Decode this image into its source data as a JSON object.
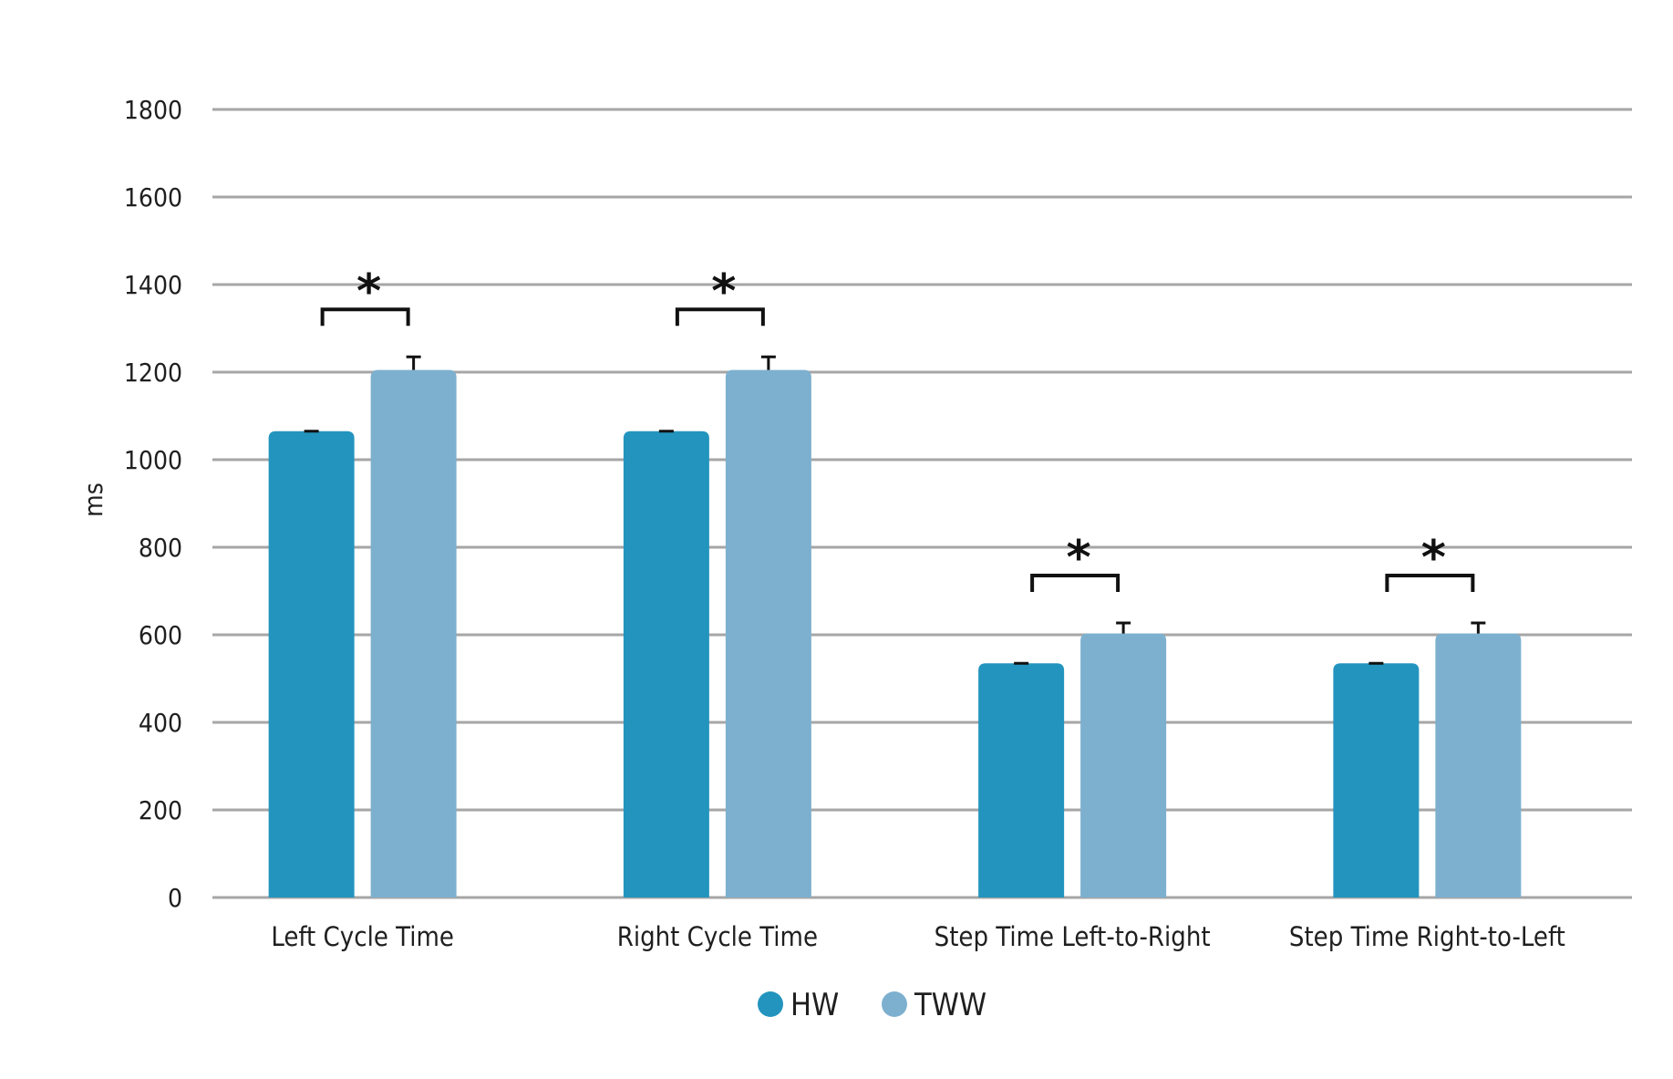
{
  "chart_data": {
    "type": "bar",
    "title": "",
    "xlabel": "",
    "ylabel": "ms",
    "ylim": [
      0,
      1800
    ],
    "yticks": [
      0,
      200,
      400,
      600,
      800,
      1000,
      1200,
      1400,
      1600,
      1800
    ],
    "grid": true,
    "legend_position": "bottom",
    "categories": [
      "Left Cycle Time",
      "Right Cycle Time",
      "Step Time Left-to-Right",
      "Step Time Right-to-Left"
    ],
    "series": [
      {
        "name": "HW",
        "color": "#2394be",
        "values": [
          1065,
          1065,
          535,
          535
        ],
        "errors": [
          0,
          0,
          0,
          0
        ]
      },
      {
        "name": "TWW",
        "color": "#7db0cf",
        "values": [
          1205,
          1205,
          603,
          603
        ],
        "errors": [
          30,
          30,
          24,
          24
        ]
      }
    ],
    "significance": [
      {
        "category": "Left Cycle Time",
        "marker": "*"
      },
      {
        "category": "Right Cycle Time",
        "marker": "*"
      },
      {
        "category": "Step Time Left-to-Right",
        "marker": "*"
      },
      {
        "category": "Step Time Right-to-Left",
        "marker": "*"
      }
    ]
  }
}
